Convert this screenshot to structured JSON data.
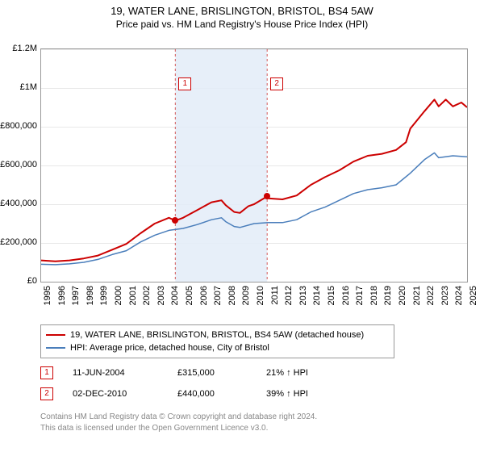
{
  "title_line1": "19, WATER LANE, BRISLINGTON, BRISTOL, BS4 5AW",
  "title_line2": "Price paid vs. HM Land Registry's House Price Index (HPI)",
  "chart": {
    "type": "line",
    "x_years": [
      1995,
      1996,
      1997,
      1998,
      1999,
      2000,
      2001,
      2002,
      2003,
      2004,
      2005,
      2006,
      2007,
      2008,
      2009,
      2010,
      2011,
      2012,
      2013,
      2014,
      2015,
      2016,
      2017,
      2018,
      2019,
      2020,
      2021,
      2022,
      2023,
      2024,
      2025
    ],
    "ylim": [
      0,
      1200000
    ],
    "ytick_step": 200000,
    "ytick_labels": [
      "£0",
      "£200,000",
      "£400,000",
      "£600,000",
      "£800,000",
      "£1M",
      "£1.2M"
    ],
    "background_color": "#ffffff",
    "grid_color": "#e8e8e8",
    "shade_color": "#e3ecf8",
    "shade_from_year": 2004.45,
    "shade_to_year": 2010.92,
    "series": [
      {
        "name": "price_paid",
        "color": "#cc0000",
        "width": 2,
        "legend": "19, WATER LANE, BRISLINGTON, BRISTOL, BS4 5AW (detached house)",
        "data": [
          [
            1995,
            110000
          ],
          [
            1996,
            105000
          ],
          [
            1997,
            110000
          ],
          [
            1998,
            120000
          ],
          [
            1999,
            135000
          ],
          [
            2000,
            165000
          ],
          [
            2001,
            195000
          ],
          [
            2002,
            250000
          ],
          [
            2003,
            300000
          ],
          [
            2004,
            330000
          ],
          [
            2004.45,
            315000
          ],
          [
            2005,
            330000
          ],
          [
            2006,
            370000
          ],
          [
            2007,
            410000
          ],
          [
            2007.7,
            420000
          ],
          [
            2008,
            395000
          ],
          [
            2008.6,
            360000
          ],
          [
            2009,
            355000
          ],
          [
            2009.6,
            390000
          ],
          [
            2010,
            400000
          ],
          [
            2010.92,
            440000
          ],
          [
            2011,
            430000
          ],
          [
            2012,
            425000
          ],
          [
            2013,
            445000
          ],
          [
            2014,
            500000
          ],
          [
            2015,
            540000
          ],
          [
            2016,
            575000
          ],
          [
            2017,
            620000
          ],
          [
            2018,
            650000
          ],
          [
            2019,
            660000
          ],
          [
            2020,
            680000
          ],
          [
            2020.7,
            720000
          ],
          [
            2021,
            790000
          ],
          [
            2022,
            880000
          ],
          [
            2022.7,
            940000
          ],
          [
            2023,
            905000
          ],
          [
            2023.5,
            940000
          ],
          [
            2024,
            905000
          ],
          [
            2024.6,
            925000
          ],
          [
            2025,
            900000
          ]
        ]
      },
      {
        "name": "hpi",
        "color": "#4a7ebb",
        "width": 1.5,
        "legend": "HPI: Average price, detached house, City of Bristol",
        "data": [
          [
            1995,
            90000
          ],
          [
            1996,
            88000
          ],
          [
            1997,
            92000
          ],
          [
            1998,
            100000
          ],
          [
            1999,
            115000
          ],
          [
            2000,
            140000
          ],
          [
            2001,
            160000
          ],
          [
            2002,
            205000
          ],
          [
            2003,
            240000
          ],
          [
            2004,
            265000
          ],
          [
            2005,
            275000
          ],
          [
            2006,
            295000
          ],
          [
            2007,
            320000
          ],
          [
            2007.7,
            330000
          ],
          [
            2008,
            310000
          ],
          [
            2008.6,
            285000
          ],
          [
            2009,
            280000
          ],
          [
            2010,
            300000
          ],
          [
            2011,
            305000
          ],
          [
            2012,
            305000
          ],
          [
            2013,
            320000
          ],
          [
            2014,
            360000
          ],
          [
            2015,
            385000
          ],
          [
            2016,
            420000
          ],
          [
            2017,
            455000
          ],
          [
            2018,
            475000
          ],
          [
            2019,
            485000
          ],
          [
            2020,
            500000
          ],
          [
            2021,
            560000
          ],
          [
            2022,
            630000
          ],
          [
            2022.7,
            665000
          ],
          [
            2023,
            640000
          ],
          [
            2024,
            650000
          ],
          [
            2025,
            645000
          ]
        ]
      }
    ],
    "vmarks": [
      {
        "label": "1",
        "year": 2004.45
      },
      {
        "label": "2",
        "year": 2010.92
      }
    ],
    "sale_dots": [
      {
        "year": 2004.45,
        "value": 315000
      },
      {
        "year": 2010.92,
        "value": 440000
      }
    ],
    "label_fontsize": 11
  },
  "legend_items": [
    "19, WATER LANE, BRISLINGTON, BRISTOL, BS4 5AW (detached house)",
    "HPI: Average price, detached house, City of Bristol"
  ],
  "sales": [
    {
      "marker": "1",
      "date": "11-JUN-2004",
      "price": "£315,000",
      "delta": "21% ↑ HPI"
    },
    {
      "marker": "2",
      "date": "02-DEC-2010",
      "price": "£440,000",
      "delta": "39% ↑ HPI"
    }
  ],
  "footer_line1": "Contains HM Land Registry data © Crown copyright and database right 2024.",
  "footer_line2": "This data is licensed under the Open Government Licence v3.0."
}
